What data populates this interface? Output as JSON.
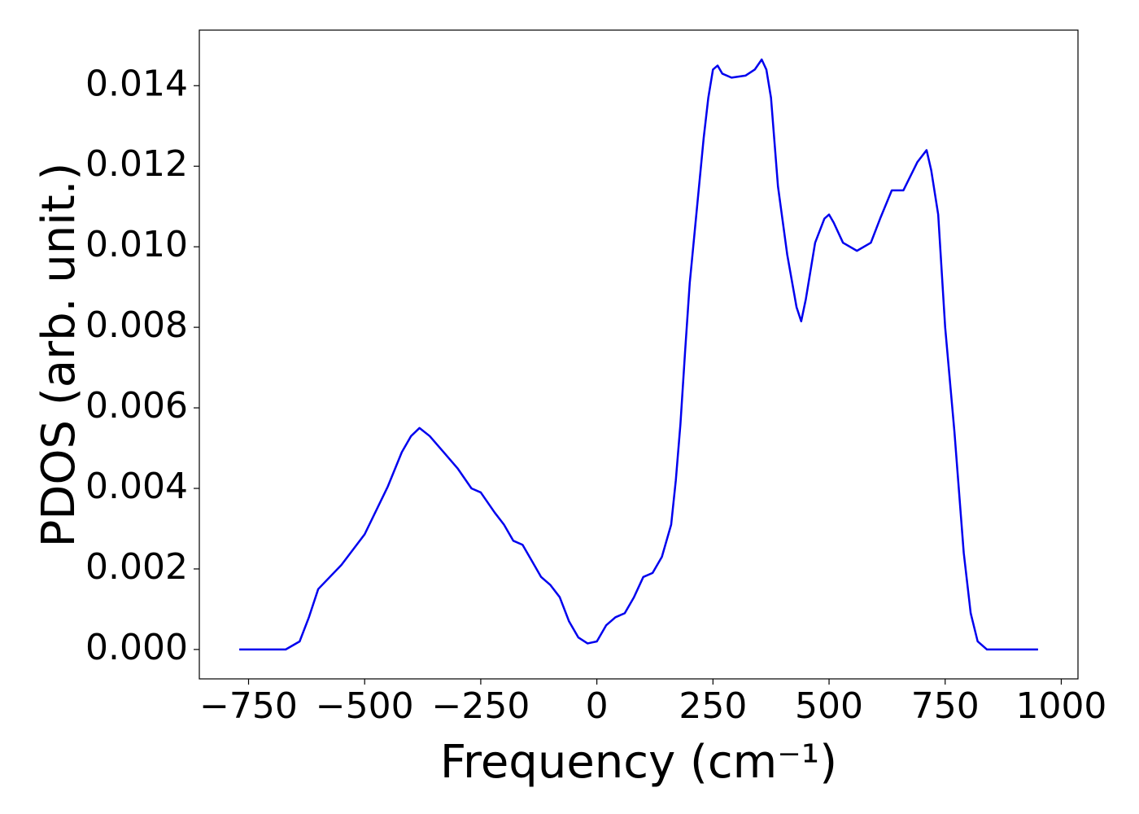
{
  "chart_data": {
    "type": "line",
    "xlabel": "Frequency (cm⁻¹)",
    "ylabel": "PDOS (arb. unit.)",
    "x": [
      -770,
      -700,
      -670,
      -640,
      -620,
      -600,
      -550,
      -500,
      -450,
      -420,
      -400,
      -382,
      -360,
      -330,
      -300,
      -270,
      -250,
      -220,
      -200,
      -180,
      -160,
      -140,
      -120,
      -100,
      -80,
      -60,
      -40,
      -20,
      0,
      20,
      40,
      60,
      80,
      100,
      120,
      140,
      160,
      170,
      180,
      190,
      200,
      210,
      220,
      230,
      240,
      250,
      260,
      270,
      290,
      320,
      340,
      355,
      365,
      375,
      390,
      410,
      430,
      440,
      450,
      470,
      490,
      500,
      510,
      530,
      560,
      590,
      610,
      635,
      660,
      690,
      710,
      720,
      735,
      750,
      770,
      790,
      805,
      820,
      840,
      950
    ],
    "series": [
      {
        "color": "#0000ee",
        "values": [
          0,
          0,
          0,
          0.0002,
          0.0008,
          0.0015,
          0.0021,
          0.00286,
          0.00405,
          0.0049,
          0.0053,
          0.0055,
          0.0053,
          0.0049,
          0.0045,
          0.004,
          0.0039,
          0.0034,
          0.0031,
          0.0027,
          0.0026,
          0.0022,
          0.0018,
          0.0016,
          0.0013,
          0.0007,
          0.0003,
          0.00015,
          0.0002,
          0.0006,
          0.0008,
          0.0009,
          0.0013,
          0.0018,
          0.0019,
          0.0023,
          0.0031,
          0.0042,
          0.0056,
          0.0074,
          0.0091,
          0.0103,
          0.0115,
          0.0127,
          0.0137,
          0.0144,
          0.0145,
          0.0143,
          0.0142,
          0.01425,
          0.0144,
          0.01465,
          0.0144,
          0.0137,
          0.0115,
          0.0098,
          0.0085,
          0.00815,
          0.0087,
          0.0101,
          0.0107,
          0.0108,
          0.0106,
          0.0101,
          0.0099,
          0.0101,
          0.0107,
          0.0114,
          0.0114,
          0.0121,
          0.0124,
          0.0119,
          0.0108,
          0.008,
          0.0054,
          0.0024,
          0.0009,
          0.0002,
          0,
          0
        ]
      }
    ],
    "xlim": [
      -856,
      1036
    ],
    "ylim": [
      -0.00073,
      0.01538
    ],
    "xticks": [
      {
        "value": -750,
        "label": "−750"
      },
      {
        "value": -500,
        "label": "−500"
      },
      {
        "value": -250,
        "label": "−250"
      },
      0,
      250,
      500,
      750,
      1000
    ],
    "yticks": [
      {
        "value": 0,
        "label": "0.000"
      },
      {
        "value": 0.002,
        "label": "0.002"
      },
      {
        "value": 0.004,
        "label": "0.004"
      },
      {
        "value": 0.006,
        "label": "0.006"
      },
      {
        "value": 0.008,
        "label": "0.008"
      },
      {
        "value": 0.01,
        "label": "0.010"
      },
      {
        "value": 0.012,
        "label": "0.012"
      },
      {
        "value": 0.014,
        "label": "0.014"
      }
    ]
  }
}
